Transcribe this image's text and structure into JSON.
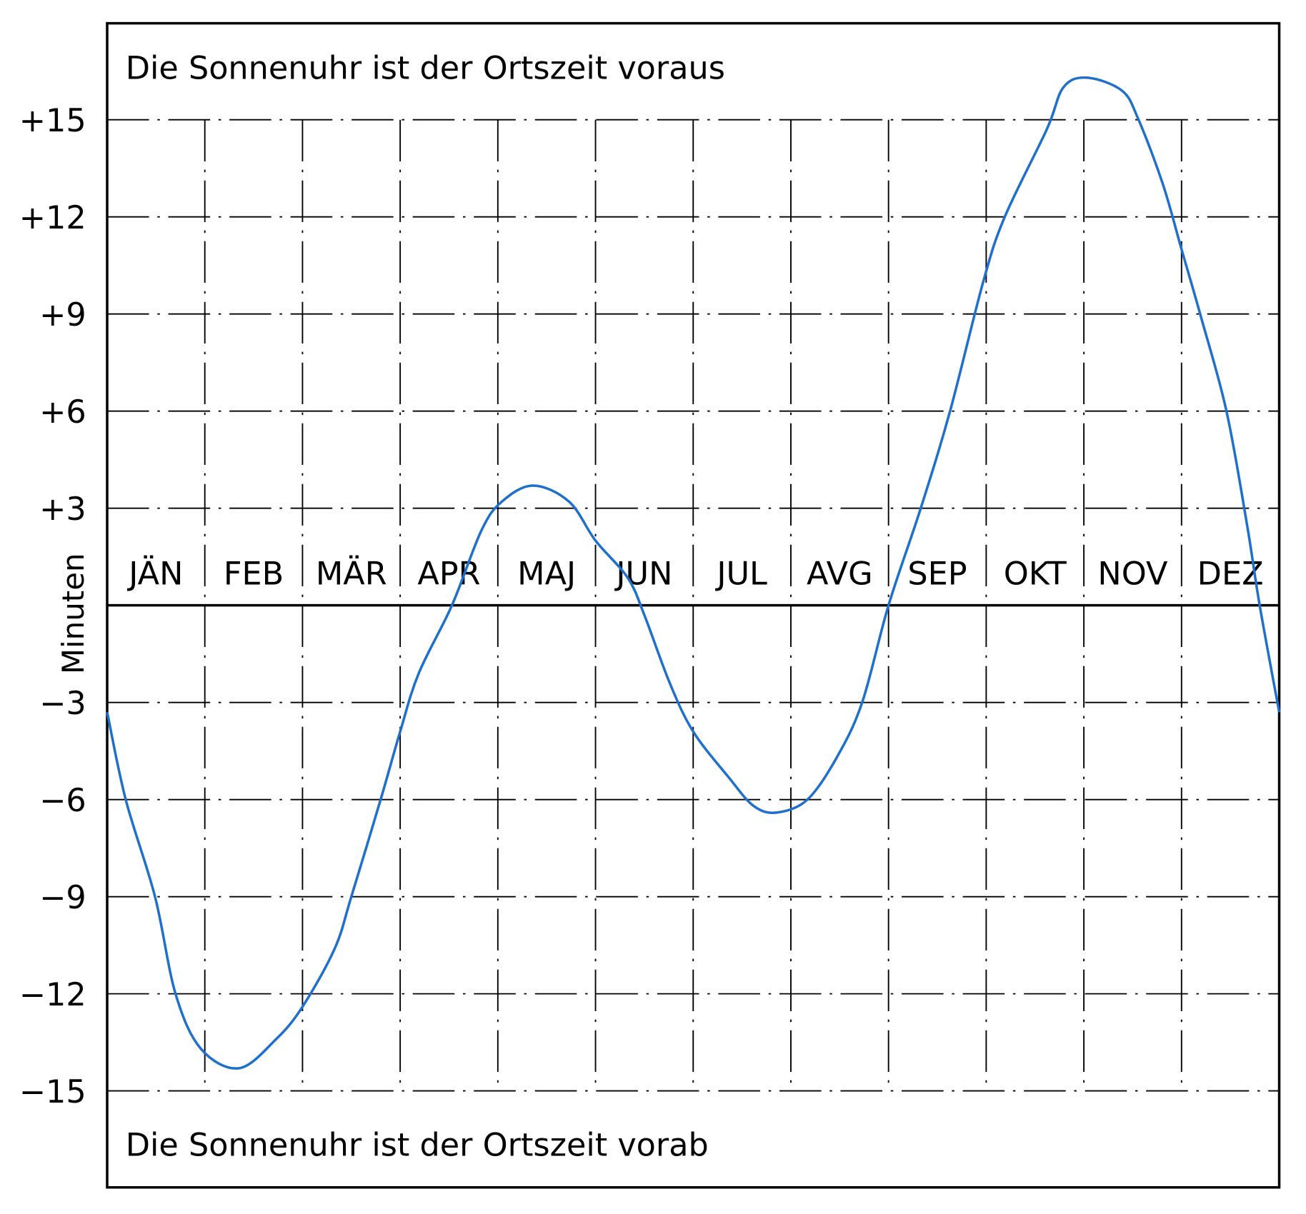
{
  "chart_data": {
    "type": "line",
    "title": "",
    "annotation_top": "Die Sonnenuhr ist der Ortszeit voraus",
    "annotation_bottom": "Die Sonnenuhr ist der Ortszeit vorab",
    "ylabel": "Minuten",
    "xlabel": "",
    "categories": [
      "JÄN",
      "FEB",
      "MÄR",
      "APR",
      "MAJ",
      "JUN",
      "JUL",
      "AVG",
      "SEP",
      "OKT",
      "NOV",
      "DEZ"
    ],
    "yticks": [
      15,
      12,
      9,
      6,
      3,
      -3,
      -6,
      -9,
      -12,
      -15
    ],
    "ytick_labels": [
      "+15",
      "+12",
      "+9",
      "+6",
      "+3",
      "−3",
      "−6",
      "−9",
      "−12",
      "−15"
    ],
    "xlim": [
      0,
      12
    ],
    "ylim": [
      -18,
      18
    ],
    "grid": true,
    "line_color": "#1f6fcc",
    "series": [
      {
        "x": [
          0,
          0.19,
          0.49,
          0.7,
          0.96,
          1.35,
          1.73,
          2.0,
          2.33,
          2.5,
          2.8,
          3.0,
          3.19,
          3.53,
          3.83,
          4.04,
          4.36,
          4.73,
          5.0,
          5.33,
          5.5,
          5.76,
          6.0,
          6.36,
          6.62,
          6.86,
          7.17,
          7.47,
          7.73,
          8.0,
          8.33,
          8.63,
          8.97,
          9.19,
          9.62,
          9.79,
          10.03,
          10.39,
          10.56,
          10.81,
          11.0,
          11.2,
          11.46,
          11.67,
          11.8,
          12.0
        ],
        "y": [
          -3.3,
          -6,
          -9,
          -12,
          -13.7,
          -14.3,
          -13.4,
          -12.4,
          -10.6,
          -9,
          -6,
          -3.9,
          -2.1,
          0,
          2.3,
          3.2,
          3.7,
          3.2,
          2.0,
          0.85,
          -0.3,
          -2.4,
          -3.9,
          -5.3,
          -6.2,
          -6.4,
          -6,
          -4.7,
          -3,
          0,
          3.0,
          6.0,
          10.0,
          12,
          14.7,
          16.0,
          16.3,
          15.9,
          15,
          13,
          11,
          8.9,
          6,
          2.5,
          0,
          -3.3
        ]
      }
    ]
  }
}
